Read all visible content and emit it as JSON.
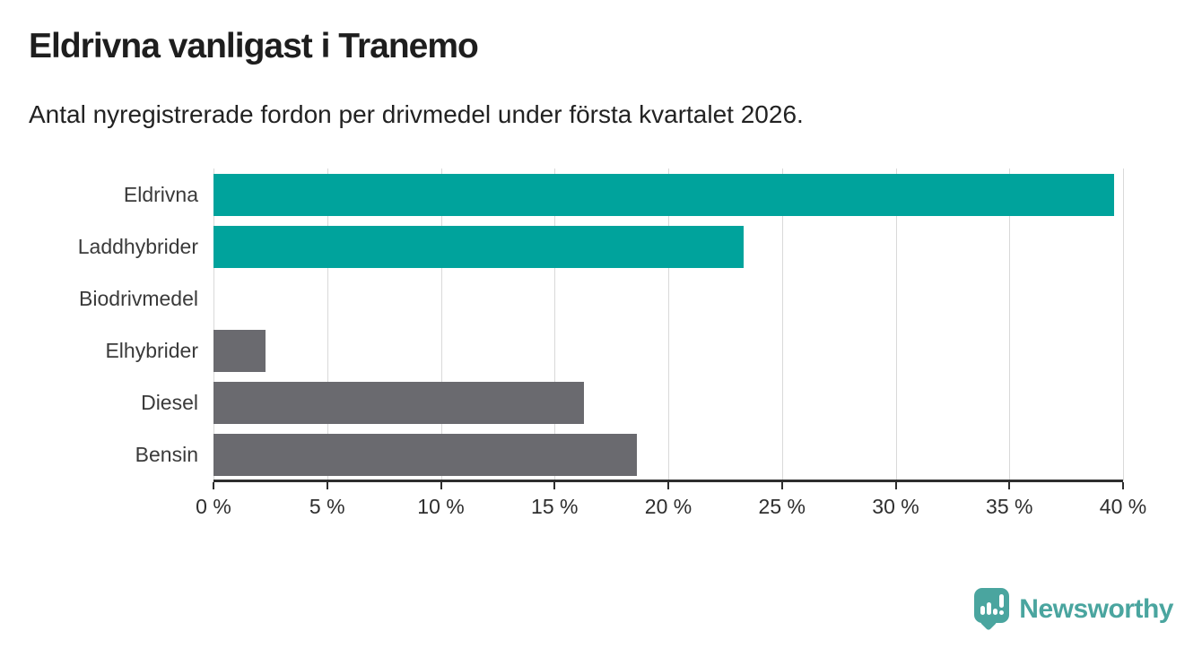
{
  "header": {
    "title": "Eldrivna vanligast i Tranemo",
    "subtitle": "Antal nyregistrerade fordon per drivmedel under första kvartalet 2026."
  },
  "chart_data": {
    "type": "bar",
    "orientation": "horizontal",
    "title": "Eldrivna vanligast i Tranemo",
    "subtitle": "Antal nyregistrerade fordon per drivmedel under första kvartalet 2026.",
    "categories": [
      "Eldrivna",
      "Laddhybrider",
      "Biodrivmedel",
      "Elhybrider",
      "Diesel",
      "Bensin"
    ],
    "values": [
      39.6,
      23.3,
      0,
      2.3,
      16.3,
      18.6
    ],
    "value_unit": "%",
    "bar_colors": [
      "#00a39c",
      "#00a39c",
      "#00a39c",
      "#6a6a6f",
      "#6a6a6f",
      "#6a6a6f"
    ],
    "xlim": [
      0,
      40
    ],
    "x_tick_labels": [
      "0 %",
      "5 %",
      "10 %",
      "15 %",
      "20 %",
      "25 %",
      "30 %",
      "35 %",
      "40 %"
    ],
    "grid": true,
    "legend": false
  },
  "branding": {
    "logo_text": "Newsworthy",
    "logo_icon": "bar-chart-speech-bubble-icon",
    "logo_color": "#4aa59f"
  },
  "colors": {
    "accent_teal": "#00a39c",
    "neutral_gray": "#6a6a6f",
    "gridline": "#d9d9d9",
    "axis": "#2e2e2e",
    "title_text": "#1e1e1e",
    "label_text": "#3a3a3a",
    "background": "#ffffff"
  }
}
